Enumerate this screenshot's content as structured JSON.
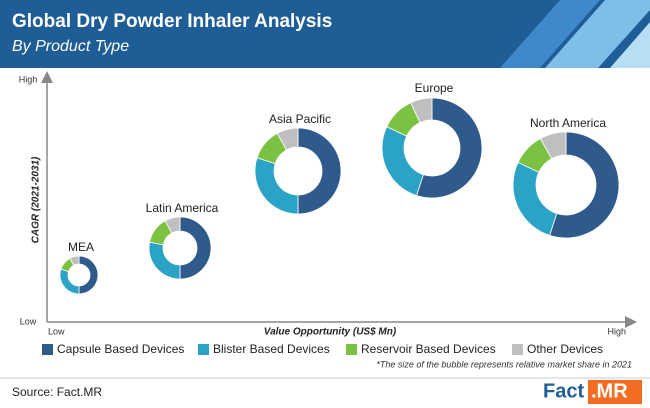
{
  "chart_data": {
    "type": "donut",
    "title": "Global Dry Powder Inhaler Analysis",
    "subtitle": "By Product Type",
    "y_label": "CAGR (2021-2031)",
    "x_label": "Value Opportunity (US$ Mn)",
    "y_axis_ends": [
      "Low",
      "High"
    ],
    "x_axis_ends": [
      "Low",
      "High"
    ],
    "categories": [
      "MEA",
      "Latin America",
      "Asia Pacific",
      "Europe",
      "North America"
    ],
    "series": [
      {
        "name": "Capsule Based Devices",
        "color": "#2e5a8c",
        "values": [
          50,
          50,
          50,
          55,
          55
        ]
      },
      {
        "name": "Blister Based Devices",
        "color": "#2aa3c6",
        "values": [
          30,
          28,
          30,
          27,
          27
        ]
      },
      {
        "name": "Reservoir Based Devices",
        "color": "#7cc242",
        "values": [
          12,
          14,
          12,
          11,
          10
        ]
      },
      {
        "name": "Other Devices",
        "color": "#bfbfbf",
        "values": [
          8,
          8,
          8,
          7,
          8
        ]
      }
    ],
    "note": "*The size of the bubble represents relative market share in 2021",
    "source": "Source: Fact.MR",
    "logo": [
      "Fact",
      ".MR"
    ]
  }
}
